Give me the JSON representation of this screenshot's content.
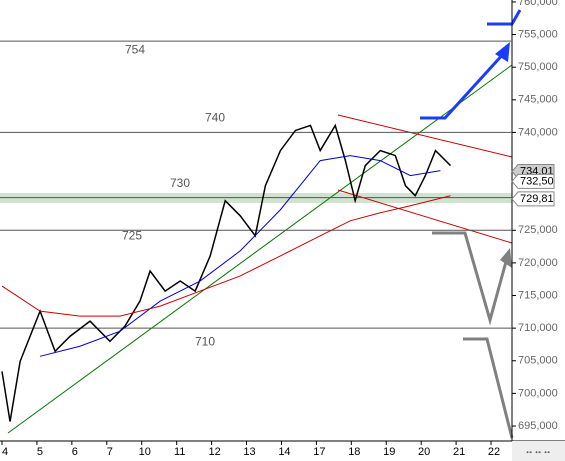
{
  "chart_data": {
    "type": "line",
    "categories": [
      "4",
      "5",
      "6",
      "7",
      "10",
      "11",
      "12",
      "13",
      "14",
      "17",
      "18",
      "19",
      "20",
      "21",
      "22"
    ],
    "xlim": [
      0,
      14.6
    ],
    "ylim": [
      692.7,
      760.3
    ],
    "yticks": [
      {
        "value": 760,
        "label": "760,000"
      },
      {
        "value": 755,
        "label": "755,000"
      },
      {
        "value": 750,
        "label": "750,000"
      },
      {
        "value": 745,
        "label": "745,000"
      },
      {
        "value": 740,
        "label": "740,000"
      },
      {
        "value": 725,
        "label": "725,000"
      },
      {
        "value": 720,
        "label": "720,000"
      },
      {
        "value": 715,
        "label": "715,000"
      },
      {
        "value": 710,
        "label": "710,000"
      },
      {
        "value": 705,
        "label": "705,000"
      },
      {
        "value": 700,
        "label": "700,000"
      },
      {
        "value": 695,
        "label": "695,000"
      }
    ],
    "levels": [
      754,
      740,
      730,
      725,
      710
    ],
    "price_markers": [
      {
        "value": 734.01,
        "label": "734,01",
        "color": "#cccccc"
      },
      {
        "value": 732.5,
        "label": "732,50",
        "color": "#ffffff"
      },
      {
        "value": 729.81,
        "label": "729,81",
        "color": "#ffffff"
      }
    ],
    "series": [
      {
        "color": "#000000",
        "x": [
          0,
          0.23,
          0.52,
          1.09,
          1.52,
          1.95,
          2.52,
          3.09,
          3.52,
          3.95,
          4.24,
          4.67,
          5.1,
          5.53,
          5.96,
          6.39,
          6.82,
          7.25,
          7.54,
          7.97,
          8.4,
          8.83,
          9.11,
          9.54,
          9.83,
          10.11,
          10.4,
          10.83,
          11.26,
          11.55,
          11.83,
          12.12,
          12.41,
          12.84
        ],
        "values": [
          703.38,
          695.68,
          704.92,
          712.61,
          706.45,
          708.76,
          711.07,
          707.99,
          710.3,
          714.15,
          718.76,
          715.68,
          717.22,
          715.68,
          721.07,
          729.53,
          727.22,
          724.15,
          731.84,
          737.22,
          740.3,
          741.07,
          737.22,
          741.07,
          735.68,
          729.53,
          734.92,
          737.22,
          736.45,
          731.84,
          730.3,
          733.38,
          737.22,
          734.92
        ]
      },
      {
        "color": "#0000cc",
        "x": [
          1.09,
          2.23,
          3.38,
          4.53,
          5.67,
          6.82,
          7.97,
          9.11,
          9.97,
          10.83,
          11.69,
          12.55
        ],
        "values": [
          705.68,
          707.22,
          709.53,
          714.15,
          717.22,
          721.84,
          728.15,
          735.68,
          736.45,
          735.68,
          733.38,
          734.15
        ]
      },
      {
        "color": "#cc0000",
        "x": [
          0,
          1.09,
          2.23,
          3.38,
          4.53,
          5.67,
          6.82,
          7.97,
          9.11,
          9.97,
          10.83,
          11.69,
          12.84
        ],
        "values": [
          716.45,
          712.61,
          711.84,
          711.84,
          713.38,
          715.68,
          718.0,
          721.07,
          724.15,
          726.45,
          727.69,
          728.76,
          730.3
        ]
      }
    ]
  }
}
